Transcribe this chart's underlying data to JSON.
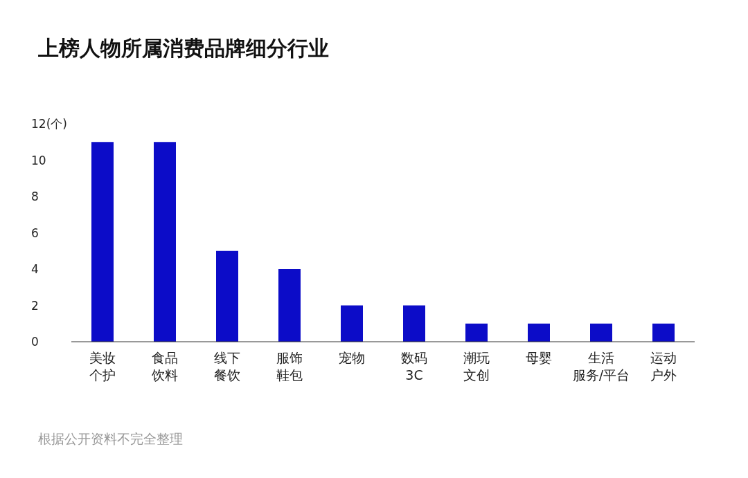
{
  "chart_data": {
    "type": "bar",
    "title": "上榜人物所属消费品牌细分行业",
    "categories": [
      "美妆个护",
      "食品饮料",
      "线下餐饮",
      "服饰鞋包",
      "宠物",
      "数码3C",
      "潮玩文创",
      "母婴",
      "生活服务/平台",
      "运动户外"
    ],
    "values": [
      11,
      11,
      5,
      4,
      2,
      2,
      1,
      1,
      1,
      1
    ],
    "color": "#0c0cc8",
    "ylim": [
      0,
      12
    ],
    "yticks": [
      0,
      2,
      4,
      6,
      8,
      10,
      {
        "value": 12,
        "label": "12(个)"
      }
    ],
    "annotations": [
      "根据公开资料不完全整理"
    ]
  }
}
